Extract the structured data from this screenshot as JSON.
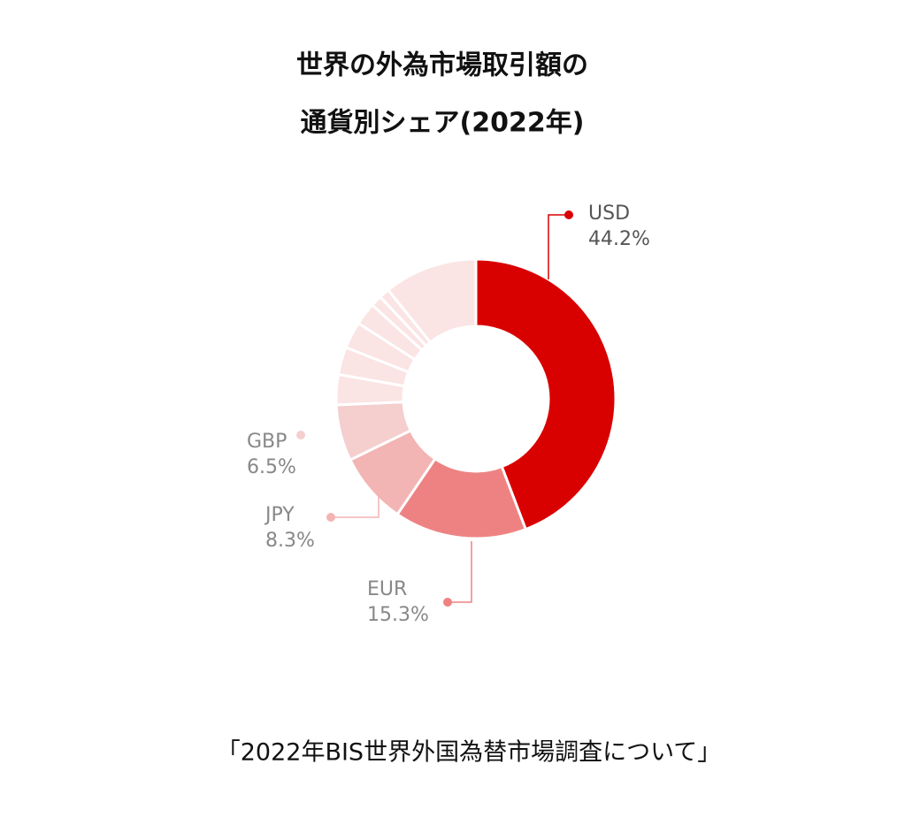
{
  "chart_data": {
    "type": "donut",
    "title": [
      "世界の外為市場取引額の",
      "通貨別シェア(2022年)"
    ],
    "categories": [
      "USD",
      "EUR",
      "JPY",
      "GBP",
      null,
      null,
      null,
      null,
      null,
      null,
      null
    ],
    "values": [
      44.2,
      15.3,
      8.3,
      6.5,
      3.5,
      3.2,
      3.1,
      2.6,
      1.3,
      1.2,
      10.8
    ],
    "value_labels": [
      "44.2%",
      "15.3%",
      "8.3%",
      "6.5%",
      null,
      null,
      null,
      null,
      null,
      null,
      null
    ],
    "colors": [
      "#d90000",
      "#ee8282",
      "#f3b4b4",
      "#f5cece",
      "#fbe4e4",
      "#fbe4e4",
      "#fbe4e4",
      "#fbe4e4",
      "#fbe4e4",
      "#fbe4e4",
      "#fbe4e4"
    ],
    "source": "「2022年BIS世界外国為替市場調査について」"
  }
}
